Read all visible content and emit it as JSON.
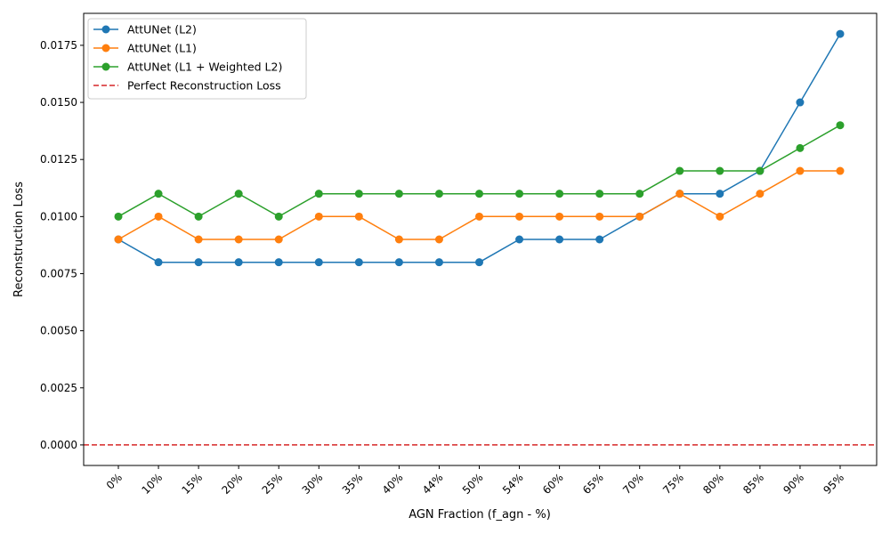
{
  "chart_data": {
    "type": "line",
    "title": "",
    "xlabel": "AGN Fraction (f_agn - %)",
    "ylabel": "Reconstruction Loss",
    "categories": [
      "0%",
      "10%",
      "15%",
      "20%",
      "25%",
      "30%",
      "35%",
      "40%",
      "44%",
      "50%",
      "54%",
      "60%",
      "65%",
      "70%",
      "75%",
      "80%",
      "85%",
      "90%",
      "95%"
    ],
    "ylim": [
      -0.0009,
      0.0189
    ],
    "yticks": [
      "0.0000",
      "0.0025",
      "0.0050",
      "0.0075",
      "0.0100",
      "0.0125",
      "0.0150",
      "0.0175"
    ],
    "ytick_values": [
      0.0,
      0.0025,
      0.005,
      0.0075,
      0.01,
      0.0125,
      0.015,
      0.0175
    ],
    "grid": false,
    "legend_position": "upper-left",
    "series": [
      {
        "name": "AttUNet (L2)",
        "color": "#1f77b4",
        "marker": "circle",
        "values": [
          0.009,
          0.008,
          0.008,
          0.008,
          0.008,
          0.008,
          0.008,
          0.008,
          0.008,
          0.008,
          0.009,
          0.009,
          0.009,
          0.01,
          0.011,
          0.011,
          0.012,
          0.015,
          0.018
        ]
      },
      {
        "name": "AttUNet (L1)",
        "color": "#ff7f0e",
        "marker": "circle",
        "values": [
          0.009,
          0.01,
          0.009,
          0.009,
          0.009,
          0.01,
          0.01,
          0.009,
          0.009,
          0.01,
          0.01,
          0.01,
          0.01,
          0.01,
          0.011,
          0.01,
          0.011,
          0.012,
          0.012
        ]
      },
      {
        "name": "AttUNet (L1 + Weighted L2)",
        "color": "#2ca02c",
        "marker": "circle",
        "values": [
          0.01,
          0.011,
          0.01,
          0.011,
          0.01,
          0.011,
          0.011,
          0.011,
          0.011,
          0.011,
          0.011,
          0.011,
          0.011,
          0.011,
          0.012,
          0.012,
          0.012,
          0.013,
          0.014
        ]
      }
    ],
    "reference_line": {
      "name": "Perfect Reconstruction Loss",
      "y": 0.0,
      "color": "#d62728",
      "style": "dashed"
    }
  }
}
